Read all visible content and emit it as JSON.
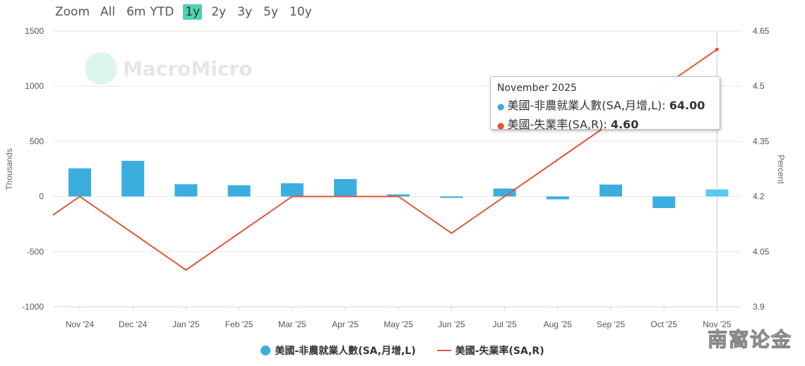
{
  "zoom": {
    "label": "Zoom",
    "options": [
      "All",
      "6m",
      "YTD",
      "1y",
      "2y",
      "3y",
      "5y",
      "10y"
    ],
    "active": "1y"
  },
  "watermark": "MacroMicro",
  "source_mark": "南窩论金",
  "tooltip": {
    "date": "November 2025",
    "series1_name": "美國-非農就業人數(SA,月增,L)",
    "series1_value": "64.00",
    "series2_name": "美國-失業率(SA,R)",
    "series2_value": "4.60"
  },
  "legend": {
    "series1": "美國-非農就業人數(SA,月增,L)",
    "series2": "美國-失業率(SA,R)"
  },
  "colors": {
    "bar": "#3aaede",
    "bar_highlight": "#5cc8ee",
    "line": "#e35438",
    "grid": "#e6e6e6"
  },
  "chart_data": {
    "type": "bar",
    "categories": [
      "Nov '24",
      "Dec '24",
      "Jan '25",
      "Feb '25",
      "Mar '25",
      "Apr '25",
      "May '25",
      "Jun '25",
      "Jul '25",
      "Aug '25",
      "Sep '25",
      "Oct '25",
      "Nov '25"
    ],
    "ylabel": "Thousands",
    "y2label": "Percent",
    "ylim": [
      -1000,
      1500
    ],
    "y2lim": [
      3.9,
      4.65
    ],
    "yticks": [
      "1500",
      "1000",
      "500",
      "0",
      "-500",
      "-1000"
    ],
    "y2ticks": [
      "4.65",
      "4.5",
      "4.35",
      "4.2",
      "4.05",
      "3.9"
    ],
    "series": [
      {
        "name": "美國-非農就業人數(SA,月增,L)",
        "type": "bar",
        "values": [
          255,
          323,
          111,
          102,
          120,
          158,
          19,
          -13,
          72,
          -26,
          108,
          -105,
          64
        ]
      },
      {
        "name": "美國-失業率(SA,R)",
        "type": "line",
        "leading_value": 4.1,
        "values": [
          4.2,
          4.1,
          4.0,
          4.1,
          4.2,
          4.2,
          4.2,
          4.1,
          4.2,
          4.3,
          4.4,
          4.5,
          4.6
        ]
      }
    ],
    "highlight_index": 12,
    "grid": true,
    "legend": "bottom-center"
  }
}
